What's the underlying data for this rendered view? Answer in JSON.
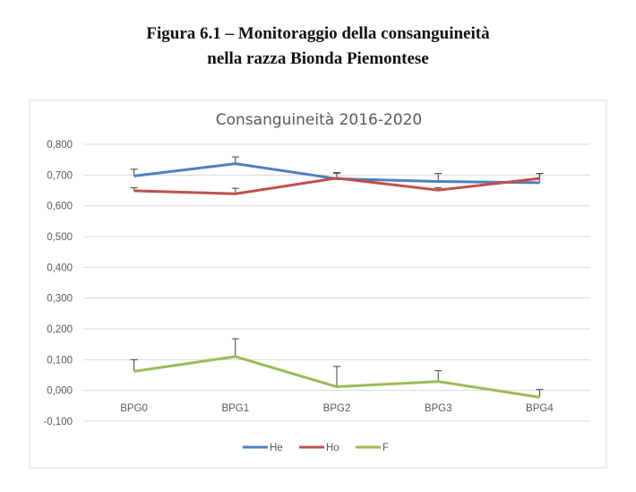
{
  "figure_caption": {
    "line1": "Figura 6.1 – Monitoraggio della consanguineità",
    "line2": "nella razza Bionda Piemontese"
  },
  "chart_data": {
    "type": "line",
    "title": "Consanguineità 2016-2020",
    "categories": [
      "BPG0",
      "BPG1",
      "BPG2",
      "BPG3",
      "BPG4"
    ],
    "yticks": [
      "-0,100",
      "0,000",
      "0,100",
      "0,200",
      "0,300",
      "0,400",
      "0,500",
      "0,600",
      "0,700",
      "0,800"
    ],
    "ylim": [
      -0.1,
      0.8
    ],
    "grid": true,
    "legend_position": "bottom",
    "series": [
      {
        "name": "He",
        "color": "#4f81bd",
        "values": [
          0.697,
          0.737,
          0.688,
          0.679,
          0.675
        ],
        "errors": [
          0.022,
          0.022,
          0.018,
          0.026,
          0.03
        ]
      },
      {
        "name": "Ho",
        "color": "#c0504d",
        "values": [
          0.649,
          0.639,
          0.69,
          0.651,
          0.689
        ],
        "errors": [
          0.01,
          0.018,
          0.018,
          0.008,
          0.016
        ]
      },
      {
        "name": "F",
        "color": "#9bbb59",
        "values": [
          0.062,
          0.11,
          0.012,
          0.029,
          -0.022
        ],
        "errors": [
          0.038,
          0.058,
          0.066,
          0.035,
          0.025
        ]
      }
    ]
  }
}
